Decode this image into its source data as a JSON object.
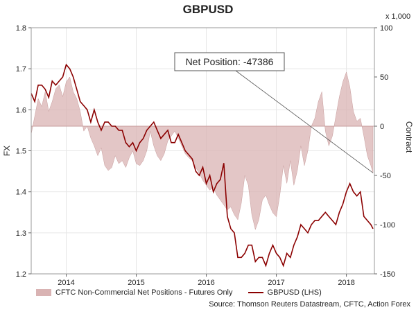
{
  "chart_data": {
    "type": "line",
    "title": "GBPUSD",
    "left_axis": {
      "label": "FX",
      "range": [
        1.2,
        1.8
      ],
      "ticks": [
        "1.8",
        "1.7",
        "1.6",
        "1.5",
        "1.4",
        "1.3",
        "1.2"
      ]
    },
    "right_axis": {
      "label": "Contract",
      "unit": "x 1,000",
      "range": [
        -150,
        100
      ],
      "ticks": [
        "100",
        "50",
        "0",
        "-50",
        "-100",
        "-150"
      ]
    },
    "x_axis": {
      "range": [
        2013.5,
        2018.4
      ],
      "tick_labels": [
        {
          "label": "2014",
          "x": 2014.0
        },
        {
          "label": "2015",
          "x": 2015.0
        },
        {
          "label": "2016",
          "x": 2016.0
        },
        {
          "label": "2017",
          "x": 2017.0
        },
        {
          "label": "2018",
          "x": 2018.0
        }
      ]
    },
    "annotation": {
      "text": "Net Position: -47386",
      "target": {
        "x": 2018.38,
        "y": -47.386
      }
    },
    "series": [
      {
        "name": "CFTC Non-Commercial Net Positions - Futures Only",
        "axis": "right",
        "style": "area",
        "color": "#d9b3b3",
        "x": [
          2013.5,
          2013.55,
          2013.6,
          2013.65,
          2013.7,
          2013.75,
          2013.8,
          2013.85,
          2013.9,
          2013.95,
          2014.0,
          2014.05,
          2014.1,
          2014.15,
          2014.2,
          2014.25,
          2014.3,
          2014.35,
          2014.4,
          2014.45,
          2014.5,
          2014.55,
          2014.6,
          2014.65,
          2014.7,
          2014.75,
          2014.8,
          2014.85,
          2014.9,
          2014.95,
          2015.0,
          2015.05,
          2015.1,
          2015.15,
          2015.2,
          2015.25,
          2015.3,
          2015.35,
          2015.4,
          2015.45,
          2015.5,
          2015.55,
          2015.6,
          2015.65,
          2015.7,
          2015.75,
          2015.8,
          2015.85,
          2015.9,
          2015.95,
          2016.0,
          2016.05,
          2016.1,
          2016.15,
          2016.2,
          2016.25,
          2016.3,
          2016.35,
          2016.4,
          2016.45,
          2016.5,
          2016.55,
          2016.6,
          2016.65,
          2016.7,
          2016.75,
          2016.8,
          2016.85,
          2016.9,
          2016.95,
          2017.0,
          2017.05,
          2017.1,
          2017.15,
          2017.2,
          2017.25,
          2017.3,
          2017.35,
          2017.4,
          2017.45,
          2017.5,
          2017.55,
          2017.6,
          2017.65,
          2017.7,
          2017.75,
          2017.8,
          2017.85,
          2017.9,
          2017.95,
          2018.0,
          2018.05,
          2018.1,
          2018.15,
          2018.2,
          2018.25,
          2018.3,
          2018.35,
          2018.38
        ],
        "values": [
          -8,
          10,
          28,
          20,
          35,
          15,
          25,
          38,
          42,
          30,
          45,
          50,
          35,
          28,
          15,
          -5,
          0,
          -12,
          -20,
          -30,
          -22,
          -40,
          -45,
          -42,
          -30,
          -38,
          -35,
          -42,
          -32,
          -25,
          -38,
          -40,
          -35,
          -25,
          -5,
          -20,
          -30,
          -35,
          -28,
          -15,
          -10,
          -5,
          -12,
          -20,
          -28,
          -32,
          -35,
          -42,
          -48,
          -55,
          -60,
          -65,
          -62,
          -70,
          -75,
          -80,
          -85,
          -82,
          -90,
          -95,
          -78,
          -50,
          -60,
          -90,
          -105,
          -95,
          -75,
          -70,
          -80,
          -88,
          -92,
          -70,
          -40,
          -58,
          -35,
          -60,
          -45,
          -20,
          -40,
          -25,
          0,
          8,
          25,
          35,
          -5,
          -20,
          -10,
          10,
          30,
          45,
          55,
          40,
          15,
          5,
          8,
          -10,
          -30,
          -40,
          -47.386
        ]
      },
      {
        "name": "GBPUSD (LHS)",
        "axis": "left",
        "style": "line",
        "color": "#8b0000",
        "x": [
          2013.5,
          2013.55,
          2013.6,
          2013.65,
          2013.7,
          2013.75,
          2013.8,
          2013.85,
          2013.9,
          2013.95,
          2014.0,
          2014.05,
          2014.1,
          2014.15,
          2014.2,
          2014.25,
          2014.3,
          2014.35,
          2014.4,
          2014.45,
          2014.5,
          2014.55,
          2014.6,
          2014.65,
          2014.7,
          2014.75,
          2014.8,
          2014.85,
          2014.9,
          2014.95,
          2015.0,
          2015.05,
          2015.1,
          2015.15,
          2015.2,
          2015.25,
          2015.3,
          2015.35,
          2015.4,
          2015.45,
          2015.5,
          2015.55,
          2015.6,
          2015.65,
          2015.7,
          2015.75,
          2015.8,
          2015.85,
          2015.9,
          2015.95,
          2016.0,
          2016.05,
          2016.1,
          2016.15,
          2016.2,
          2016.25,
          2016.3,
          2016.35,
          2016.4,
          2016.45,
          2016.5,
          2016.55,
          2016.6,
          2016.65,
          2016.7,
          2016.75,
          2016.8,
          2016.85,
          2016.9,
          2016.95,
          2017.0,
          2017.05,
          2017.1,
          2017.15,
          2017.2,
          2017.25,
          2017.3,
          2017.35,
          2017.4,
          2017.45,
          2017.5,
          2017.55,
          2017.6,
          2017.65,
          2017.7,
          2017.75,
          2017.8,
          2017.85,
          2017.9,
          2017.95,
          2018.0,
          2018.05,
          2018.1,
          2018.15,
          2018.2,
          2018.25,
          2018.3,
          2018.35,
          2018.38
        ],
        "values": [
          1.64,
          1.62,
          1.66,
          1.66,
          1.65,
          1.63,
          1.67,
          1.66,
          1.67,
          1.68,
          1.71,
          1.7,
          1.68,
          1.65,
          1.62,
          1.61,
          1.6,
          1.57,
          1.6,
          1.57,
          1.55,
          1.57,
          1.57,
          1.56,
          1.56,
          1.55,
          1.55,
          1.52,
          1.51,
          1.52,
          1.5,
          1.52,
          1.53,
          1.55,
          1.56,
          1.57,
          1.55,
          1.53,
          1.54,
          1.55,
          1.52,
          1.52,
          1.54,
          1.52,
          1.5,
          1.49,
          1.48,
          1.45,
          1.44,
          1.46,
          1.42,
          1.44,
          1.4,
          1.42,
          1.43,
          1.47,
          1.34,
          1.31,
          1.3,
          1.24,
          1.24,
          1.25,
          1.27,
          1.27,
          1.23,
          1.24,
          1.24,
          1.22,
          1.25,
          1.27,
          1.25,
          1.24,
          1.22,
          1.25,
          1.24,
          1.27,
          1.29,
          1.32,
          1.31,
          1.3,
          1.32,
          1.33,
          1.33,
          1.34,
          1.35,
          1.34,
          1.33,
          1.32,
          1.35,
          1.37,
          1.4,
          1.42,
          1.4,
          1.39,
          1.4,
          1.34,
          1.33,
          1.32,
          1.31
        ]
      }
    ],
    "grid": true
  },
  "legend_labels": {
    "area": "CFTC Non-Commercial Net Positions - Futures Only",
    "line": "GBPUSD (LHS)"
  },
  "source": "Source: Thomson Reuters Datastream, CFTC, Action Forex"
}
